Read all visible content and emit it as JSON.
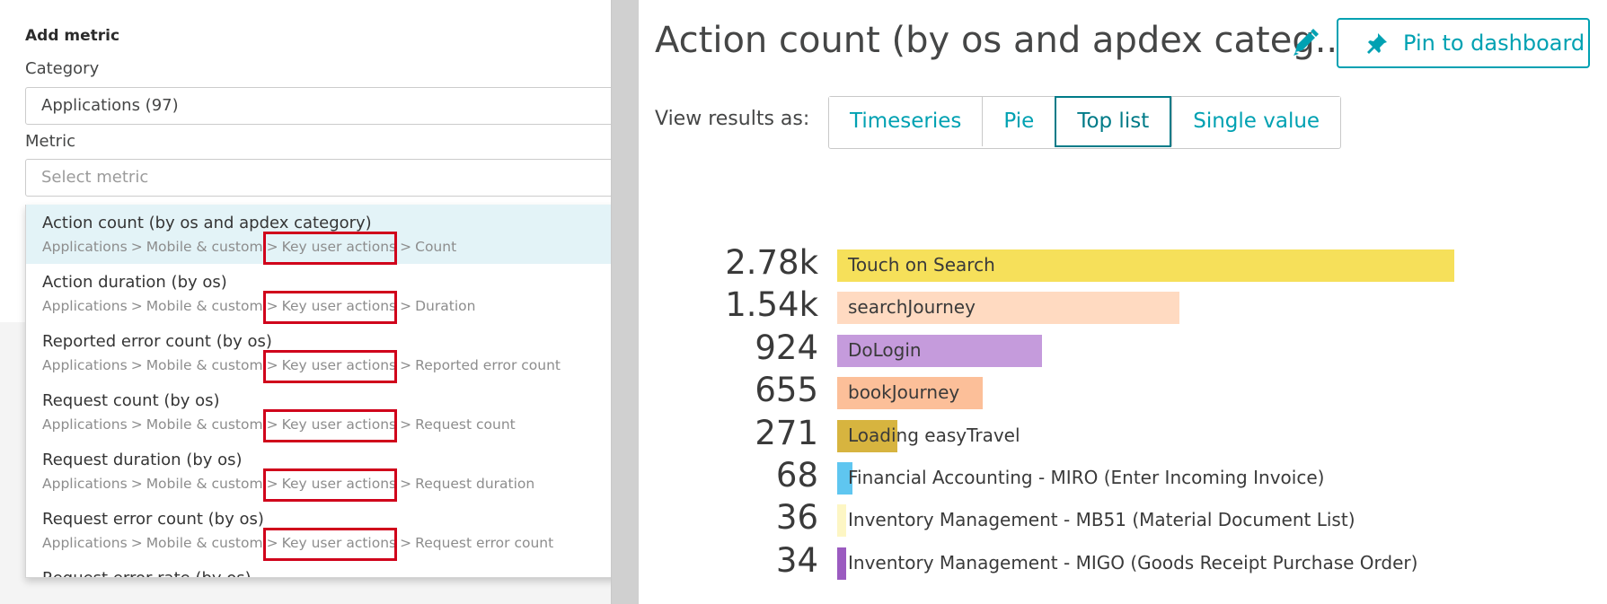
{
  "left_panel": {
    "title": "Add metric",
    "category_label": "Category",
    "category_value": "Applications (97)",
    "metric_label": "Metric",
    "metric_placeholder": "Select metric",
    "metrics": [
      {
        "name": "Action count (by os and apdex category)",
        "path": [
          "Applications",
          "Mobile & custom",
          "Key user actions",
          "Count"
        ],
        "selected": true
      },
      {
        "name": "Action duration (by os)",
        "path": [
          "Applications",
          "Mobile & custom",
          "Key user actions",
          "Duration"
        ]
      },
      {
        "name": "Reported error count (by os)",
        "path": [
          "Applications",
          "Mobile & custom",
          "Key user actions",
          "Reported error count"
        ]
      },
      {
        "name": "Request count (by os)",
        "path": [
          "Applications",
          "Mobile & custom",
          "Key user actions",
          "Request count"
        ]
      },
      {
        "name": "Request duration (by os)",
        "path": [
          "Applications",
          "Mobile & custom",
          "Key user actions",
          "Request duration"
        ]
      },
      {
        "name": "Request error count (by os)",
        "path": [
          "Applications",
          "Mobile & custom",
          "Key user actions",
          "Request error count"
        ]
      },
      {
        "name": "Request error rate (by os)",
        "path": []
      }
    ],
    "separator": ">"
  },
  "right_panel": {
    "title": "Action count (by os and apdex categ...",
    "pin_button": "Pin to dashboard",
    "view_label": "View results as:",
    "view_options": [
      "Timeseries",
      "Pie",
      "Top list",
      "Single value"
    ],
    "active_view": "Top list"
  },
  "colors": {
    "accent": "#00a1b2",
    "highlight_box": "#d0021b",
    "selected_row": "#e3f3f7"
  },
  "chart_data": {
    "type": "bar",
    "orientation": "horizontal",
    "categories": [
      "Touch on Search",
      "searchJourney",
      "DoLogin",
      "bookJourney",
      "Loading easyTravel",
      "Financial Accounting - MIRO (Enter Incoming Invoice)",
      "Inventory Management - MB51 (Material Document List)",
      "Inventory Management - MIGO (Goods Receipt Purchase Order)"
    ],
    "values": [
      2780,
      1540,
      924,
      655,
      271,
      68,
      36,
      34
    ],
    "value_labels": [
      "2.78k",
      "1.54k",
      "924",
      "655",
      "271",
      "68",
      "36",
      "34"
    ],
    "colors": [
      "#f6e05a",
      "#ffdac1",
      "#c59bdc",
      "#fcbf99",
      "#d7b43f",
      "#5fc6f0",
      "#fdf6c4",
      "#9b5bc0"
    ],
    "xlim": [
      0,
      2780
    ]
  }
}
